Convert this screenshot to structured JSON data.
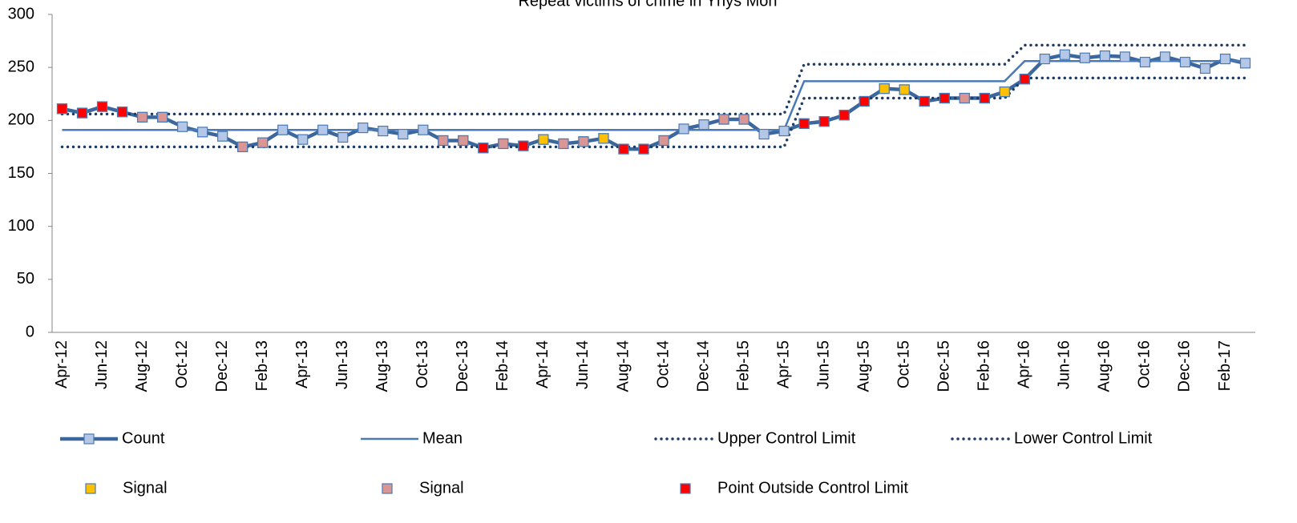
{
  "chart_data": {
    "type": "line",
    "title": "Repeat victims of crime in Ynys Mon",
    "categories": [
      "Apr-12",
      null,
      "Jun-12",
      null,
      "Aug-12",
      null,
      "Oct-12",
      null,
      "Dec-12",
      null,
      "Feb-13",
      null,
      "Apr-13",
      null,
      "Jun-13",
      null,
      "Aug-13",
      null,
      "Oct-13",
      null,
      "Dec-13",
      null,
      "Feb-14",
      null,
      "Apr-14",
      null,
      "Jun-14",
      null,
      "Aug-14",
      null,
      "Oct-14",
      null,
      "Dec-14",
      null,
      "Feb-15",
      null,
      "Apr-15",
      null,
      "Jun-15",
      null,
      "Aug-15",
      null,
      "Oct-15",
      null,
      "Dec-15",
      null,
      "Feb-16",
      null,
      "Apr-16",
      null,
      "Jun-16",
      null,
      "Aug-16",
      null,
      "Oct-16",
      null,
      "Dec-16",
      null,
      "Feb-17",
      null
    ],
    "ylim": [
      0,
      300
    ],
    "yticks": [
      0,
      50,
      100,
      150,
      200,
      250,
      300
    ],
    "grid": false,
    "series": [
      {
        "name": "Count",
        "style": "line-marker",
        "color": "#3c679d",
        "marker_color": "#b4c7e7",
        "values": [
          211,
          207,
          213,
          208,
          203,
          203,
          194,
          189,
          185,
          175,
          179,
          191,
          182,
          191,
          184,
          193,
          190,
          187,
          191,
          181,
          181,
          174,
          178,
          176,
          182,
          178,
          180,
          183,
          173,
          173,
          181,
          192,
          196,
          201,
          201,
          187,
          190,
          197,
          199,
          205,
          218,
          230,
          229,
          218,
          221,
          221,
          221,
          227,
          239,
          258,
          262,
          259,
          261,
          260,
          255,
          260,
          255,
          249,
          258,
          254
        ]
      },
      {
        "name": "Mean",
        "style": "line",
        "color": "#4a7ab5",
        "values": [
          191,
          191,
          191,
          191,
          191,
          191,
          191,
          191,
          191,
          191,
          191,
          191,
          191,
          191,
          191,
          191,
          191,
          191,
          191,
          191,
          191,
          191,
          191,
          191,
          191,
          191,
          191,
          191,
          191,
          191,
          191,
          191,
          191,
          191,
          191,
          191,
          191,
          237,
          237,
          237,
          237,
          237,
          237,
          237,
          237,
          237,
          237,
          237,
          256,
          256,
          256,
          256,
          256,
          256,
          256,
          256,
          256,
          256,
          256,
          256
        ]
      },
      {
        "name": "Upper Control Limit",
        "style": "dotted",
        "color": "#1f3c64",
        "values": [
          206,
          206,
          206,
          206,
          206,
          206,
          206,
          206,
          206,
          206,
          206,
          206,
          206,
          206,
          206,
          206,
          206,
          206,
          206,
          206,
          206,
          206,
          206,
          206,
          206,
          206,
          206,
          206,
          206,
          206,
          206,
          206,
          206,
          206,
          206,
          206,
          206,
          253,
          253,
          253,
          253,
          253,
          253,
          253,
          253,
          253,
          253,
          253,
          271,
          271,
          271,
          271,
          271,
          271,
          271,
          271,
          271,
          271,
          271,
          271
        ]
      },
      {
        "name": "Lower Control Limit",
        "style": "dotted",
        "color": "#1f3c64",
        "values": [
          175,
          175,
          175,
          175,
          175,
          175,
          175,
          175,
          175,
          175,
          175,
          175,
          175,
          175,
          175,
          175,
          175,
          175,
          175,
          175,
          175,
          175,
          175,
          175,
          175,
          175,
          175,
          175,
          175,
          175,
          175,
          175,
          175,
          175,
          175,
          175,
          175,
          221,
          221,
          221,
          221,
          221,
          221,
          221,
          221,
          221,
          221,
          221,
          240,
          240,
          240,
          240,
          240,
          240,
          240,
          240,
          240,
          240,
          240,
          240
        ]
      },
      {
        "name": "Signal",
        "style": "marker",
        "color": "#ffc000",
        "values": [
          null,
          null,
          null,
          null,
          null,
          null,
          null,
          null,
          null,
          null,
          null,
          null,
          null,
          null,
          null,
          null,
          null,
          null,
          null,
          null,
          null,
          null,
          null,
          null,
          182,
          null,
          null,
          183,
          null,
          null,
          null,
          null,
          null,
          null,
          null,
          null,
          null,
          null,
          null,
          null,
          null,
          230,
          229,
          null,
          null,
          null,
          null,
          227,
          null,
          null,
          null,
          null,
          null,
          null,
          null,
          null,
          null,
          null,
          null,
          null
        ]
      },
      {
        "name": "Signal",
        "style": "marker",
        "color": "#d99694",
        "values": [
          null,
          null,
          null,
          null,
          203,
          203,
          null,
          null,
          null,
          175,
          179,
          null,
          null,
          null,
          null,
          null,
          null,
          null,
          null,
          181,
          181,
          null,
          178,
          null,
          null,
          178,
          180,
          null,
          null,
          null,
          181,
          null,
          null,
          201,
          201,
          null,
          null,
          null,
          null,
          null,
          null,
          null,
          null,
          null,
          null,
          221,
          null,
          null,
          null,
          null,
          null,
          null,
          null,
          null,
          null,
          null,
          null,
          null,
          null,
          null
        ]
      },
      {
        "name": "Point Outside Control Limit",
        "style": "marker",
        "color": "#ff0000",
        "values": [
          211,
          207,
          213,
          208,
          null,
          null,
          null,
          null,
          null,
          null,
          null,
          null,
          null,
          null,
          null,
          null,
          null,
          null,
          null,
          null,
          null,
          174,
          null,
          176,
          null,
          null,
          null,
          null,
          173,
          173,
          null,
          null,
          null,
          null,
          null,
          null,
          null,
          197,
          199,
          205,
          218,
          null,
          null,
          218,
          221,
          null,
          221,
          null,
          239,
          null,
          null,
          null,
          null,
          null,
          null,
          null,
          null,
          null,
          null,
          null
        ]
      }
    ]
  }
}
